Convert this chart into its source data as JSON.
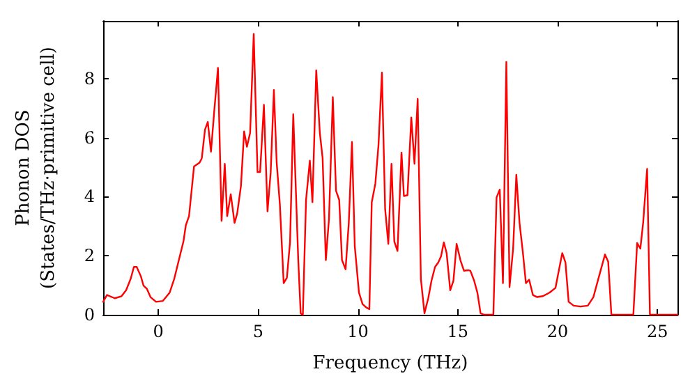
{
  "chart_data": {
    "type": "line",
    "xlabel": "Frequency (THz)",
    "ylabel": "Phonon DOS\n(States/THz·primitive cell)",
    "xlim": [
      -2.76,
      26
    ],
    "ylim": [
      0,
      9.95
    ],
    "xticks": [
      0,
      5,
      10,
      15,
      20,
      25
    ],
    "yticks": [
      0,
      2,
      4,
      6,
      8
    ],
    "marker": "none",
    "line_style": "solid",
    "series": [
      {
        "color": "#ff0000",
        "x": [
          -2.76,
          -2.57,
          -2.18,
          -1.84,
          -1.61,
          -1.38,
          -1.22,
          -1.08,
          -0.87,
          -0.74,
          -0.57,
          -0.39,
          -0.11,
          0.23,
          0.57,
          0.8,
          1.03,
          1.26,
          1.38,
          1.54,
          1.79,
          2.07,
          2.18,
          2.34,
          2.48,
          2.64,
          2.8,
          2.99,
          3.17,
          3.33,
          3.45,
          3.63,
          3.82,
          3.95,
          4.14,
          4.3,
          4.44,
          4.6,
          4.78,
          4.97,
          5.1,
          5.29,
          5.47,
          5.63,
          5.79,
          5.93,
          6.09,
          6.28,
          6.44,
          6.6,
          6.76,
          7.01,
          7.13,
          7.24,
          7.4,
          7.59,
          7.72,
          7.91,
          8.09,
          8.23,
          8.39,
          8.55,
          8.74,
          8.9,
          9.06,
          9.2,
          9.38,
          9.54,
          9.7,
          9.84,
          10.05,
          10.23,
          10.41,
          10.57,
          10.69,
          10.87,
          11.03,
          11.2,
          11.36,
          11.52,
          11.68,
          11.82,
          11.98,
          12.18,
          12.3,
          12.48,
          12.67,
          12.83,
          12.99,
          13.15,
          13.33,
          13.52,
          13.68,
          13.86,
          14.02,
          14.16,
          14.3,
          14.44,
          14.62,
          14.78,
          14.94,
          15.13,
          15.31,
          15.52,
          15.63,
          15.82,
          15.98,
          16.14,
          16.32,
          16.78,
          16.94,
          17.1,
          17.26,
          17.43,
          17.59,
          17.77,
          17.93,
          18.09,
          18.25,
          18.41,
          18.57,
          18.76,
          18.97,
          19.26,
          19.59,
          19.89,
          20.07,
          20.23,
          20.39,
          20.55,
          20.8,
          21.15,
          21.51,
          21.79,
          22.07,
          22.37,
          22.53,
          22.69,
          23.79,
          23.98,
          24.14,
          24.28,
          24.48,
          24.62,
          26
        ],
        "values": [
          0.44,
          0.67,
          0.56,
          0.63,
          0.83,
          1.22,
          1.62,
          1.62,
          1.3,
          0.99,
          0.88,
          0.6,
          0.44,
          0.47,
          0.75,
          1.22,
          1.85,
          2.48,
          3.03,
          3.34,
          5.02,
          5.15,
          5.3,
          6.27,
          6.53,
          5.52,
          6.87,
          8.36,
          3.18,
          5.11,
          3.34,
          4.08,
          3.11,
          3.42,
          4.36,
          6.21,
          5.69,
          6.16,
          9.51,
          4.83,
          4.83,
          7.11,
          3.5,
          4.83,
          7.61,
          5.15,
          3.73,
          1.07,
          1.25,
          2.48,
          6.79,
          1.85,
          0.05,
          0,
          3.89,
          5.22,
          3.81,
          8.28,
          6.16,
          5.3,
          1.85,
          3.26,
          7.37,
          4.2,
          3.89,
          1.85,
          1.54,
          3.11,
          5.85,
          2.32,
          0.75,
          0.36,
          0.25,
          0.19,
          3.81,
          4.44,
          5.77,
          8.2,
          3.58,
          2.4,
          5.11,
          2.48,
          2.16,
          5.49,
          4.02,
          4.05,
          6.68,
          5.11,
          7.31,
          1.22,
          0.05,
          0.56,
          1.15,
          1.62,
          1.77,
          1.98,
          2.45,
          2.09,
          0.83,
          1.15,
          2.4,
          1.85,
          1.49,
          1.51,
          1.49,
          1.15,
          0.75,
          0.05,
          0,
          0,
          3.97,
          4.24,
          1.07,
          8.56,
          0.94,
          2.24,
          4.74,
          3.11,
          2.16,
          1.07,
          1.19,
          0.67,
          0.6,
          0.63,
          0.75,
          0.91,
          1.54,
          2.09,
          1.77,
          0.44,
          0.31,
          0.28,
          0.31,
          0.6,
          1.3,
          2.04,
          1.8,
          0,
          0,
          2.43,
          2.24,
          3.11,
          4.94,
          0,
          0
        ]
      }
    ]
  }
}
